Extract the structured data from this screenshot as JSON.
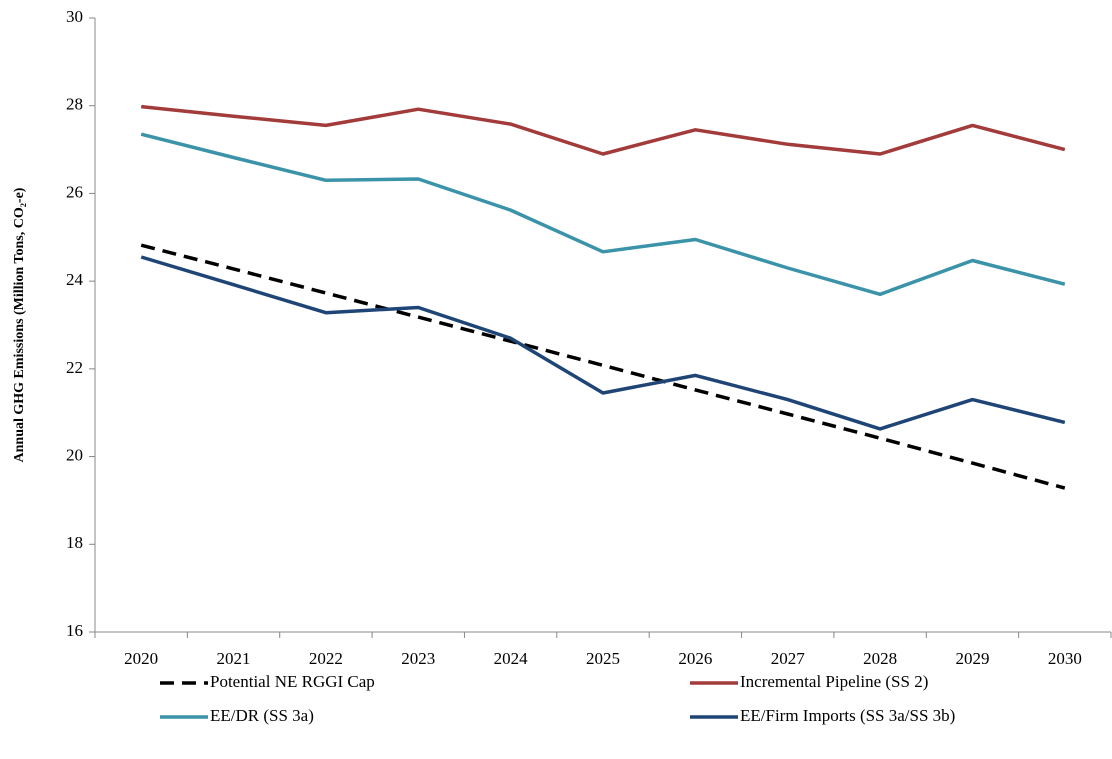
{
  "chart_data": {
    "type": "line",
    "y_label": "Annual GHG Emissions (Million Tons, CO₂-e)",
    "categories": [
      "2020",
      "2021",
      "2022",
      "2023",
      "2024",
      "2025",
      "2026",
      "2027",
      "2028",
      "2029",
      "2030"
    ],
    "series": [
      {
        "name": "Potential NE RGGI Cap",
        "color": "#000000",
        "dash": true,
        "values": [
          24.82,
          24.28,
          23.73,
          23.18,
          22.63,
          22.08,
          21.52,
          20.97,
          20.42,
          19.85,
          19.28
        ]
      },
      {
        "name": "Incremental Pipeline (SS 2)",
        "color": "#a33b3b",
        "dash": false,
        "values": [
          27.98,
          27.76,
          27.55,
          27.92,
          27.58,
          26.9,
          27.45,
          27.12,
          26.9,
          27.55,
          27.0
        ]
      },
      {
        "name": "EE/DR (SS 3a)",
        "color": "#3a93a8",
        "dash": false,
        "values": [
          27.35,
          26.82,
          26.3,
          26.33,
          25.62,
          24.67,
          24.95,
          24.3,
          23.7,
          24.47,
          23.93
        ]
      },
      {
        "name": "EE/Firm Imports (SS 3a/SS 3b)",
        "color": "#1f4577",
        "dash": false,
        "values": [
          24.55,
          23.92,
          23.28,
          23.4,
          22.7,
          21.45,
          21.85,
          21.3,
          20.63,
          21.3,
          20.78
        ]
      }
    ],
    "ylim": [
      16,
      30
    ],
    "yticks": [
      16,
      18,
      20,
      22,
      24,
      26,
      28,
      30
    ],
    "grid": false
  }
}
